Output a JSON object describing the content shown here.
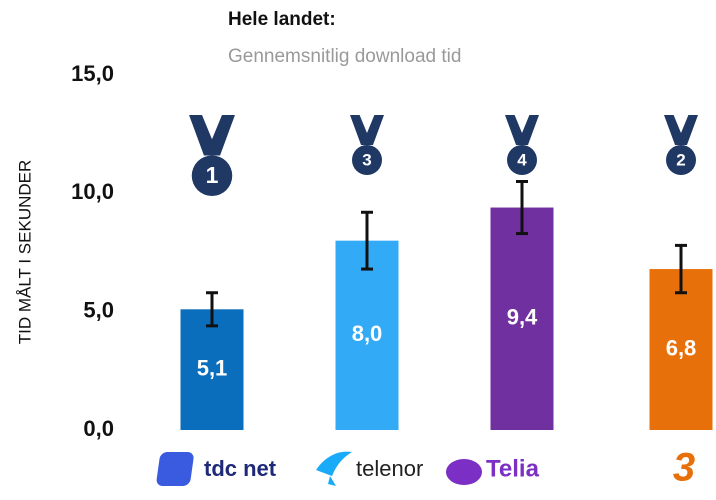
{
  "chart_data": {
    "type": "bar",
    "title": "Hele landet:",
    "subtitle": "Gennemsnitlig download tid",
    "ylabel": "TID MÅLT I SEKUNDER",
    "categories": [
      "tdc net",
      "telenor",
      "Telia",
      "3"
    ],
    "values": [
      5.1,
      8.0,
      9.4,
      6.8
    ],
    "value_labels": [
      "5,1",
      "8,0",
      "9,4",
      "6,8"
    ],
    "errors": [
      0.7,
      1.2,
      1.1,
      1.0
    ],
    "ranks": [
      1,
      3,
      4,
      2
    ],
    "colors": [
      "#0a6ebd",
      "#33aaf5",
      "#7030a0",
      "#e8700a"
    ],
    "ylim": [
      0,
      15
    ],
    "yticks": [
      {
        "value": 0,
        "label": "0,0"
      },
      {
        "value": 5,
        "label": "5,0"
      },
      {
        "value": 10,
        "label": "10,0"
      },
      {
        "value": 15,
        "label": "15,0"
      }
    ],
    "grid": false
  }
}
